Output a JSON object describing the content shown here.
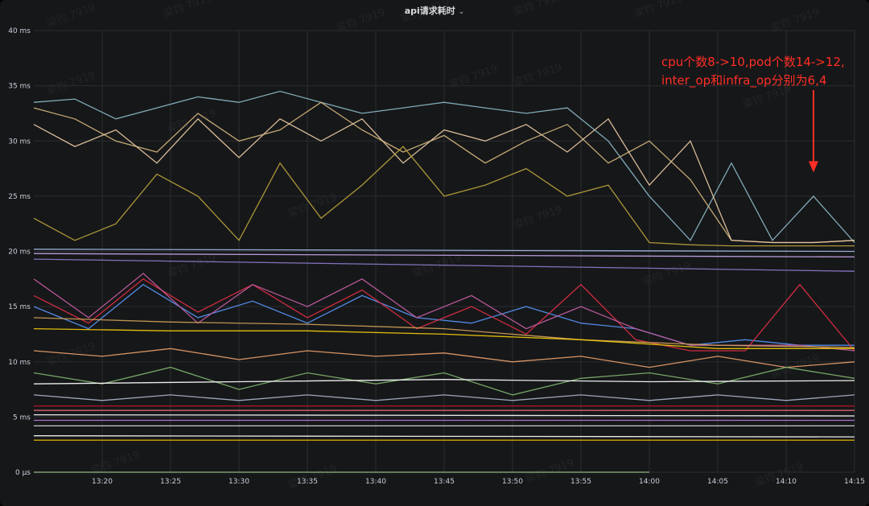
{
  "panel": {
    "title": "api请求耗时",
    "chevron_icon": "chevron-down-icon"
  },
  "watermark": "梁钧 7919",
  "chart_data": {
    "type": "line",
    "title": "api请求耗时",
    "xlabel": "",
    "ylabel": "",
    "y_unit": "ms",
    "ylim": [
      0,
      40
    ],
    "xlim": [
      "13:15",
      "14:15"
    ],
    "y_ticks": [
      {
        "value": 0,
        "label": "0 µs"
      },
      {
        "value": 5,
        "label": "5 ms"
      },
      {
        "value": 10,
        "label": "10 ms"
      },
      {
        "value": 15,
        "label": "15 ms"
      },
      {
        "value": 20,
        "label": "20 ms"
      },
      {
        "value": 25,
        "label": "25 ms"
      },
      {
        "value": 30,
        "label": "30 ms"
      },
      {
        "value": 35,
        "label": "35 ms"
      },
      {
        "value": 40,
        "label": "40 ms"
      }
    ],
    "x_ticks": [
      "13:20",
      "13:25",
      "13:30",
      "13:35",
      "13:40",
      "13:45",
      "13:50",
      "13:55",
      "14:00",
      "14:05",
      "14:10",
      "14:15"
    ],
    "grid": true,
    "legend": "none",
    "annotation": {
      "lines": [
        "cpu个数8->10,pod个数14->12,",
        "inter_op和infra_op分别为6,4"
      ],
      "color": "#ff2f25",
      "arrow_from": {
        "x": "14:12",
        "y": 29.5
      },
      "arrow_to": {
        "x": "14:12",
        "y": 27
      }
    },
    "series": [
      {
        "color": "#8ab8c4",
        "x": [
          "13:15",
          "13:18",
          "13:21",
          "13:24",
          "13:27",
          "13:30",
          "13:33",
          "13:36",
          "13:39",
          "13:42",
          "13:45",
          "13:48",
          "13:51",
          "13:54",
          "13:57",
          "14:00",
          "14:03",
          "14:06",
          "14:09",
          "14:12",
          "14:15"
        ],
        "values": [
          33.5,
          33.8,
          32.0,
          33.0,
          34.0,
          33.5,
          34.5,
          33.5,
          32.5,
          33.0,
          33.5,
          33.0,
          32.5,
          33.0,
          30.0,
          25.0,
          21.0,
          28.0,
          21.0,
          25.0,
          20.8
        ]
      },
      {
        "color": "#d3b47c",
        "x": [
          "13:15",
          "13:18",
          "13:21",
          "13:24",
          "13:27",
          "13:30",
          "13:33",
          "13:36",
          "13:39",
          "13:42",
          "13:45",
          "13:48",
          "13:51",
          "13:54",
          "13:57",
          "14:00",
          "14:03",
          "14:06",
          "14:09",
          "14:12",
          "14:15"
        ],
        "values": [
          33.0,
          32.0,
          30.0,
          29.0,
          32.5,
          30.0,
          31.0,
          33.5,
          31.0,
          29.0,
          30.5,
          28.0,
          30.0,
          31.5,
          28.0,
          30.0,
          26.5,
          21.0,
          20.8,
          20.8,
          21.0
        ]
      },
      {
        "color": "#e8c9a2",
        "x": [
          "13:15",
          "13:18",
          "13:21",
          "13:24",
          "13:27",
          "13:30",
          "13:33",
          "13:36",
          "13:39",
          "13:42",
          "13:45",
          "13:48",
          "13:51",
          "13:54",
          "13:57",
          "14:00",
          "14:03",
          "14:06",
          "14:09",
          "14:12",
          "14:15"
        ],
        "values": [
          31.5,
          29.5,
          31.0,
          28.0,
          32.0,
          28.5,
          32.0,
          30.0,
          32.0,
          28.0,
          31.0,
          30.0,
          31.5,
          29.0,
          32.0,
          26.0,
          30.0,
          21.0,
          20.8,
          20.8,
          21.0
        ]
      },
      {
        "color": "#b8a23b",
        "x": [
          "13:15",
          "13:18",
          "13:21",
          "13:24",
          "13:27",
          "13:30",
          "13:33",
          "13:36",
          "13:39",
          "13:42",
          "13:45",
          "13:48",
          "13:51",
          "13:54",
          "13:57",
          "14:00",
          "14:03",
          "14:06",
          "14:09",
          "14:12",
          "14:15"
        ],
        "values": [
          23.0,
          21.0,
          22.5,
          27.0,
          25.0,
          21.0,
          28.0,
          23.0,
          26.0,
          29.5,
          25.0,
          26.0,
          27.5,
          25.0,
          26.0,
          20.8,
          20.6,
          20.5,
          20.5,
          20.5,
          20.5
        ]
      },
      {
        "color": "#9fb8e0",
        "x": [
          "13:15",
          "14:15"
        ],
        "values": [
          20.2,
          20.0
        ]
      },
      {
        "color": "#c5a6e6",
        "x": [
          "13:15",
          "14:15"
        ],
        "values": [
          19.8,
          19.5
        ]
      },
      {
        "color": "#8e7ccc",
        "x": [
          "13:15",
          "14:15"
        ],
        "values": [
          19.3,
          18.2
        ]
      },
      {
        "color": "#5794f2",
        "x": [
          "13:15",
          "13:19",
          "13:23",
          "13:27",
          "13:31",
          "13:35",
          "13:39",
          "13:43",
          "13:47",
          "13:51",
          "13:55",
          "13:59",
          "14:03",
          "14:07",
          "14:11",
          "14:15"
        ],
        "values": [
          15.0,
          13.0,
          17.0,
          14.0,
          15.5,
          13.5,
          16.0,
          14.0,
          13.5,
          15.0,
          13.5,
          13.0,
          11.5,
          12.0,
          11.5,
          11.5
        ]
      },
      {
        "color": "#e02f44",
        "x": [
          "13:15",
          "13:19",
          "13:23",
          "13:27",
          "13:31",
          "13:35",
          "13:39",
          "13:43",
          "13:47",
          "13:51",
          "13:55",
          "13:59",
          "14:03",
          "14:07",
          "14:11",
          "14:15"
        ],
        "values": [
          16.0,
          13.5,
          17.5,
          14.5,
          17.0,
          14.0,
          16.5,
          13.0,
          15.0,
          12.5,
          17.0,
          12.0,
          11.0,
          11.0,
          17.0,
          11.0
        ]
      },
      {
        "color": "#c15c9e",
        "x": [
          "13:15",
          "13:19",
          "13:23",
          "13:27",
          "13:31",
          "13:35",
          "13:39",
          "13:43",
          "13:47",
          "13:51",
          "13:55",
          "13:59",
          "14:03",
          "14:07",
          "14:11",
          "14:15"
        ],
        "values": [
          17.5,
          14.0,
          18.0,
          13.5,
          17.0,
          15.0,
          17.5,
          14.0,
          16.0,
          13.0,
          15.0,
          13.0,
          11.5,
          11.5,
          11.5,
          11.0
        ]
      },
      {
        "color": "#d0a158",
        "x": [
          "13:15",
          "13:25",
          "13:35",
          "13:45",
          "13:55",
          "14:05",
          "14:15"
        ],
        "values": [
          14.0,
          13.6,
          13.4,
          13.0,
          12.0,
          11.5,
          11.3
        ]
      },
      {
        "color": "#f2cc0c",
        "x": [
          "13:15",
          "13:25",
          "13:35",
          "13:45",
          "13:55",
          "14:05",
          "14:15"
        ],
        "values": [
          13.0,
          12.8,
          12.8,
          12.5,
          12.0,
          11.2,
          11.2
        ]
      },
      {
        "color": "#e8a06a",
        "x": [
          "13:15",
          "13:20",
          "13:25",
          "13:30",
          "13:35",
          "13:40",
          "13:45",
          "13:50",
          "13:55",
          "14:00",
          "14:05",
          "14:10",
          "14:15"
        ],
        "values": [
          11.0,
          10.5,
          11.2,
          10.2,
          11.0,
          10.5,
          10.8,
          10.0,
          10.5,
          9.5,
          10.5,
          9.5,
          10.0
        ]
      },
      {
        "color": "#7eb26d",
        "x": [
          "13:15",
          "13:20",
          "13:25",
          "13:30",
          "13:35",
          "13:40",
          "13:45",
          "13:50",
          "13:55",
          "14:00",
          "14:05",
          "14:10",
          "14:15"
        ],
        "values": [
          9.0,
          8.0,
          9.5,
          7.5,
          9.0,
          8.0,
          9.0,
          7.0,
          8.5,
          9.0,
          8.0,
          9.5,
          8.5
        ]
      },
      {
        "color": "#ffffff",
        "x": [
          "13:15",
          "13:30",
          "13:45",
          "14:00",
          "14:15"
        ],
        "values": [
          8.0,
          8.2,
          8.4,
          8.2,
          8.3
        ]
      },
      {
        "color": "#a9b3c8",
        "x": [
          "13:15",
          "13:20",
          "13:25",
          "13:30",
          "13:35",
          "13:40",
          "13:45",
          "13:50",
          "13:55",
          "14:00",
          "14:05",
          "14:10",
          "14:15"
        ],
        "values": [
          7.0,
          6.5,
          7.0,
          6.5,
          7.0,
          6.5,
          7.0,
          6.5,
          7.0,
          6.5,
          7.0,
          6.5,
          7.0
        ]
      },
      {
        "color": "#c4162a",
        "x": [
          "13:15",
          "14:15"
        ],
        "values": [
          6.0,
          6.0
        ]
      },
      {
        "color": "#ff7383",
        "x": [
          "13:15",
          "14:15"
        ],
        "values": [
          5.6,
          5.6
        ]
      },
      {
        "color": "#ffffff",
        "x": [
          "13:15",
          "14:15"
        ],
        "values": [
          5.2,
          5.1
        ]
      },
      {
        "color": "#b877d9",
        "x": [
          "13:15",
          "14:15"
        ],
        "values": [
          4.7,
          4.7
        ]
      },
      {
        "color": "#d8d9da",
        "x": [
          "13:15",
          "14:15"
        ],
        "values": [
          4.2,
          4.2
        ]
      },
      {
        "color": "#ffffff",
        "x": [
          "13:15",
          "14:15"
        ],
        "values": [
          3.3,
          3.2
        ]
      },
      {
        "color": "#e0b400",
        "x": [
          "13:15",
          "14:15"
        ],
        "values": [
          2.9,
          2.9
        ]
      },
      {
        "color": "#9ac48a",
        "x": [
          "13:15",
          "14:00"
        ],
        "values": [
          0.0,
          0.0
        ]
      }
    ]
  }
}
